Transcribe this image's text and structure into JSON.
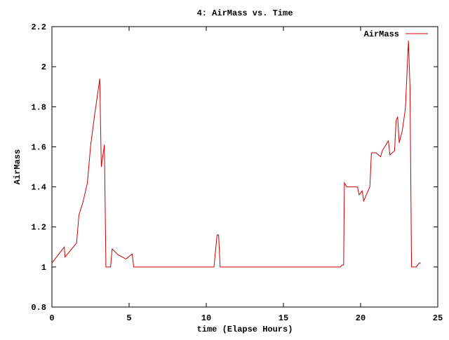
{
  "chart_data": {
    "type": "line",
    "title": "4: AirMass vs. Time",
    "x_label": "time (Elapse Hours)",
    "y_label": "AirMass",
    "x": [
      0,
      0.8,
      0.85,
      1.6,
      1.75,
      2.0,
      2.3,
      2.5,
      2.75,
      3.1,
      3.2,
      3.4,
      3.5,
      3.8,
      3.9,
      4.3,
      4.8,
      5.2,
      5.3,
      10.5,
      10.7,
      10.8,
      10.9,
      18.7,
      18.8,
      18.9,
      18.95,
      19.1,
      19.5,
      19.8,
      19.9,
      20.1,
      20.2,
      20.6,
      20.7,
      21.0,
      21.3,
      21.4,
      21.8,
      21.9,
      22.2,
      22.3,
      22.4,
      22.5,
      22.7,
      22.9,
      23.1,
      23.2,
      23.3,
      23.6,
      23.8,
      23.9
    ],
    "series": [
      {
        "name": "AirMass",
        "color": "#cc0000",
        "values": [
          1.02,
          1.1,
          1.05,
          1.12,
          1.26,
          1.32,
          1.42,
          1.6,
          1.75,
          1.94,
          1.5,
          1.61,
          1.0,
          1.0,
          1.09,
          1.06,
          1.04,
          1.065,
          1.0,
          1.0,
          1.16,
          1.16,
          1.0,
          1.0,
          1.01,
          1.01,
          1.42,
          1.4,
          1.4,
          1.4,
          1.36,
          1.38,
          1.33,
          1.4,
          1.57,
          1.57,
          1.55,
          1.58,
          1.63,
          1.56,
          1.58,
          1.73,
          1.75,
          1.62,
          1.68,
          1.79,
          2.13,
          1.9,
          1.0,
          1.0,
          1.02,
          1.02
        ]
      }
    ],
    "xlim": [
      0,
      25
    ],
    "xticks": [
      0,
      5,
      10,
      15,
      20,
      25
    ],
    "ylim": [
      0.8,
      2.2
    ],
    "yticks": [
      0.8,
      1,
      1.2,
      1.4,
      1.6,
      1.8,
      2,
      2.2
    ],
    "legend": "top-right"
  }
}
